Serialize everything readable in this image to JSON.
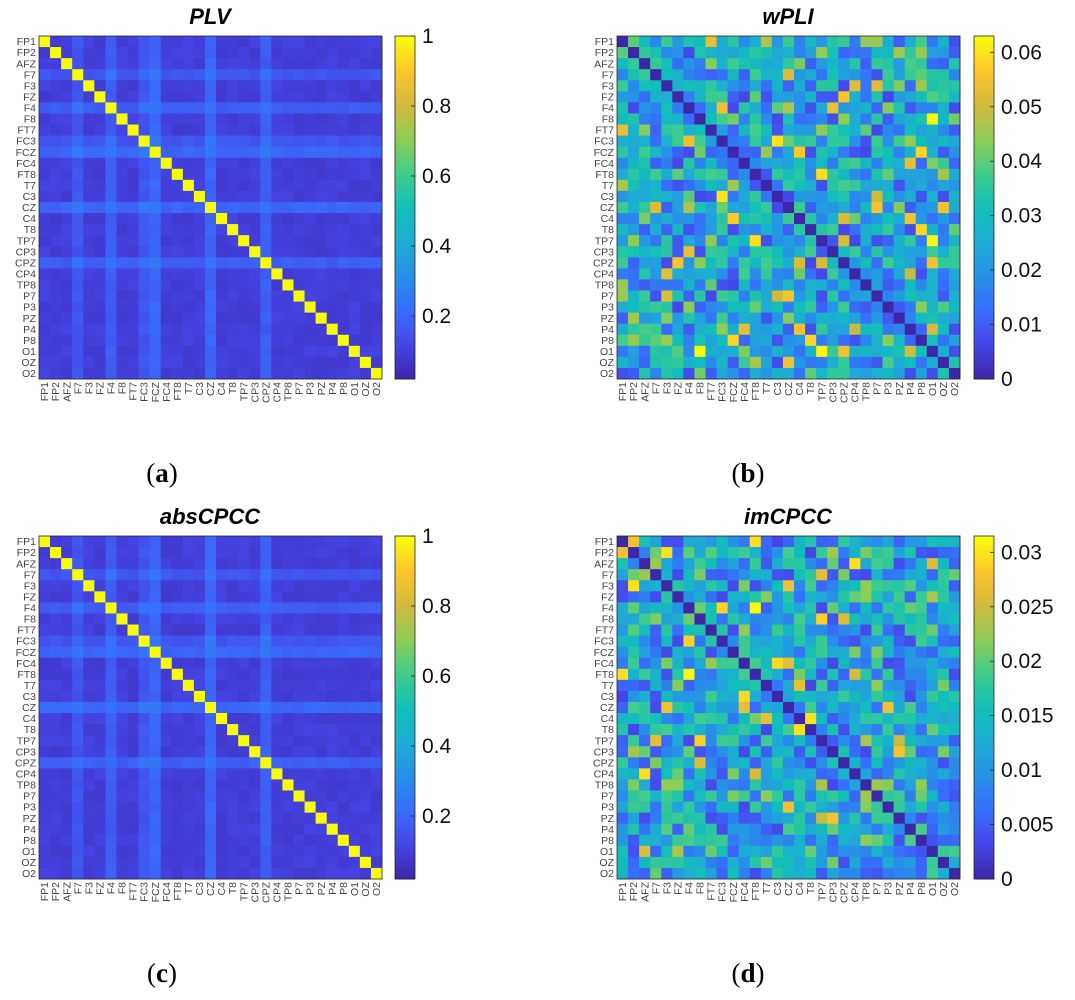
{
  "figure": {
    "description_source": "four EEG connectivity matrices",
    "channels": [
      "FP1",
      "FP2",
      "AFZ",
      "F7",
      "F3",
      "FZ",
      "F4",
      "F8",
      "FT7",
      "FC3",
      "FCZ",
      "FC4",
      "FT8",
      "T7",
      "C3",
      "CZ",
      "C4",
      "T8",
      "TP7",
      "CP3",
      "CPZ",
      "CP4",
      "TP8",
      "P7",
      "P3",
      "PZ",
      "P4",
      "P8",
      "O1",
      "OZ",
      "O2"
    ]
  },
  "chart_data": [
    {
      "type": "heatmap",
      "panel_id": "a",
      "title": "PLV",
      "caption_open": "(",
      "caption_letter": "a",
      "caption_close": ")",
      "colormap": "parula",
      "color_range": [
        0.02,
        1.0
      ],
      "colorbar_ticks": [
        0.2,
        0.4,
        0.6,
        0.8,
        1.0
      ],
      "colorbar_tick_labels": [
        "0.2",
        "0.4",
        "0.6",
        "0.8",
        "1"
      ],
      "diagonal_value": 1.0,
      "off_diagonal_base": 0.08,
      "highlighted_channels": {
        "F4": 0.16,
        "FCZ": 0.2,
        "CZ": 0.2,
        "CPZ": 0.16,
        "F7": 0.12,
        "FC3": 0.12
      }
    },
    {
      "type": "heatmap",
      "panel_id": "b",
      "title": "wPLI",
      "caption_open": "(",
      "caption_letter": "b",
      "caption_close": ")",
      "colormap": "parula",
      "color_range": [
        0.0,
        0.063
      ],
      "colorbar_ticks": [
        0,
        0.01,
        0.02,
        0.03,
        0.04,
        0.05,
        0.06
      ],
      "colorbar_tick_labels": [
        "0",
        "0.01",
        "0.02",
        "0.03",
        "0.04",
        "0.05",
        "0.06"
      ],
      "diagonal_value": 0.0,
      "matrix_pattern": "symmetric, noisy, mostly 0.005-0.045 with sparse peaks near 0.06"
    },
    {
      "type": "heatmap",
      "panel_id": "c",
      "title": "absCPCC",
      "caption_open": "(",
      "caption_letter": "c",
      "caption_close": ")",
      "colormap": "parula",
      "color_range": [
        0.02,
        1.0
      ],
      "colorbar_ticks": [
        0.2,
        0.4,
        0.6,
        0.8,
        1.0
      ],
      "colorbar_tick_labels": [
        "0.2",
        "0.4",
        "0.6",
        "0.8",
        "1"
      ],
      "diagonal_value": 1.0,
      "off_diagonal_base": 0.08,
      "highlighted_channels": {
        "F4": 0.16,
        "FCZ": 0.2,
        "CZ": 0.2,
        "CPZ": 0.16,
        "F7": 0.12,
        "FC3": 0.12
      }
    },
    {
      "type": "heatmap",
      "panel_id": "d",
      "title": "imCPCC",
      "caption_open": "(",
      "caption_letter": "d",
      "caption_close": ")",
      "colormap": "parula",
      "color_range": [
        0.0,
        0.0315
      ],
      "colorbar_ticks": [
        0,
        0.005,
        0.01,
        0.015,
        0.02,
        0.025,
        0.03
      ],
      "colorbar_tick_labels": [
        "0",
        "0.005",
        "0.01",
        "0.015",
        "0.02",
        "0.025",
        "0.03"
      ],
      "diagonal_value": 0.0,
      "matrix_pattern": "symmetric, noisy, mostly 0.003-0.022 with sparse peaks near 0.03"
    }
  ]
}
